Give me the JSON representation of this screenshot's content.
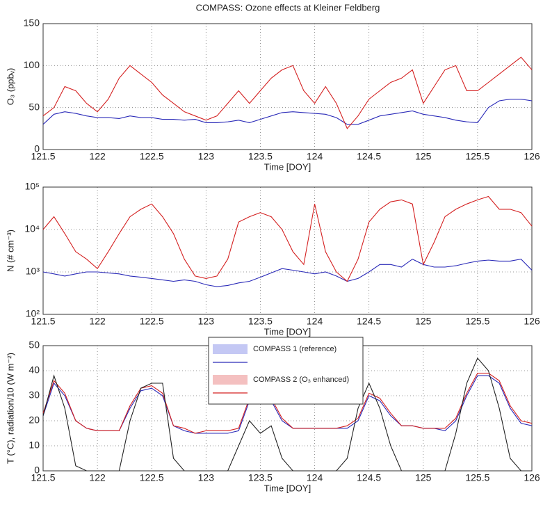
{
  "chart_data": [
    {
      "type": "line",
      "title": "COMPASS: Ozone effects at Kleiner Feldberg",
      "x_label": "Time [DOY]",
      "y_label": "O₃ (ppbᵥ)",
      "x": [
        121.5,
        121.6,
        121.7,
        121.8,
        121.9,
        122.0,
        122.1,
        122.2,
        122.3,
        122.4,
        122.5,
        122.6,
        122.7,
        122.8,
        122.9,
        123.0,
        123.1,
        123.2,
        123.3,
        123.4,
        123.5,
        123.6,
        123.7,
        123.8,
        123.9,
        124.0,
        124.1,
        124.2,
        124.3,
        124.4,
        124.5,
        124.6,
        124.7,
        124.8,
        124.9,
        125.0,
        125.1,
        125.2,
        125.3,
        125.4,
        125.5,
        125.6,
        125.7,
        125.8,
        125.9,
        126.0
      ],
      "xlim": [
        121.5,
        126
      ],
      "xticks": [
        121.5,
        122,
        122.5,
        123,
        123.5,
        124,
        124.5,
        125,
        125.5,
        126
      ],
      "ylim": [
        0,
        150
      ],
      "yticks": [
        0,
        50,
        100,
        150
      ],
      "grid": true,
      "series": [
        {
          "color": "#2a2ab8",
          "values": [
            30,
            42,
            45,
            43,
            40,
            38,
            38,
            37,
            40,
            38,
            38,
            36,
            36,
            35,
            36,
            32,
            32,
            33,
            35,
            32,
            36,
            40,
            44,
            45,
            44,
            43,
            42,
            38,
            30,
            30,
            35,
            40,
            42,
            44,
            46,
            42,
            40,
            38,
            35,
            33,
            32,
            50,
            58,
            60,
            60,
            58
          ]
        },
        {
          "color": "#d42020",
          "values": [
            40,
            50,
            75,
            70,
            55,
            45,
            60,
            85,
            100,
            90,
            80,
            65,
            55,
            45,
            40,
            35,
            40,
            55,
            70,
            55,
            70,
            85,
            95,
            100,
            70,
            55,
            75,
            55,
            25,
            40,
            60,
            70,
            80,
            85,
            95,
            55,
            75,
            95,
            100,
            70,
            70,
            80,
            90,
            100,
            110,
            95
          ]
        }
      ]
    },
    {
      "type": "line",
      "x_label": "Time [DOY]",
      "y_label": "N (# cm⁻³)",
      "log_y": true,
      "x": [
        121.5,
        121.6,
        121.7,
        121.8,
        121.9,
        122.0,
        122.1,
        122.2,
        122.3,
        122.4,
        122.5,
        122.6,
        122.7,
        122.8,
        122.9,
        123.0,
        123.1,
        123.2,
        123.3,
        123.4,
        123.5,
        123.6,
        123.7,
        123.8,
        123.9,
        124.0,
        124.1,
        124.2,
        124.3,
        124.4,
        124.5,
        124.6,
        124.7,
        124.8,
        124.9,
        125.0,
        125.1,
        125.2,
        125.3,
        125.4,
        125.5,
        125.6,
        125.7,
        125.8,
        125.9,
        126.0
      ],
      "xlim": [
        121.5,
        126
      ],
      "xticks": [
        121.5,
        122,
        122.5,
        123,
        123.5,
        124,
        124.5,
        125,
        125.5,
        126
      ],
      "ylim": [
        100,
        100000
      ],
      "yticks": [
        {
          "value": 100,
          "label": "10²"
        },
        {
          "value": 1000,
          "label": "10³"
        },
        {
          "value": 10000,
          "label": "10⁴"
        },
        {
          "value": 100000,
          "label": "10⁵"
        }
      ],
      "grid": true,
      "series": [
        {
          "color": "#2a2ab8",
          "values": [
            1000,
            900,
            800,
            900,
            1000,
            1000,
            950,
            900,
            800,
            750,
            700,
            650,
            600,
            650,
            600,
            500,
            450,
            480,
            550,
            600,
            750,
            950,
            1200,
            1100,
            1000,
            900,
            1000,
            800,
            600,
            700,
            1000,
            1500,
            1500,
            1300,
            2000,
            1500,
            1300,
            1300,
            1400,
            1600,
            1800,
            1900,
            1800,
            1800,
            2000,
            1100
          ]
        },
        {
          "color": "#d42020",
          "values": [
            10000,
            20000,
            8000,
            3000,
            2000,
            1200,
            3000,
            8000,
            20000,
            30000,
            40000,
            20000,
            8000,
            2000,
            800,
            700,
            800,
            2000,
            15000,
            20000,
            25000,
            20000,
            10000,
            3000,
            1500,
            40000,
            3000,
            1000,
            600,
            2000,
            15000,
            30000,
            45000,
            50000,
            40000,
            1500,
            5000,
            20000,
            30000,
            40000,
            50000,
            60000,
            30000,
            30000,
            25000,
            12000
          ]
        }
      ]
    },
    {
      "type": "line",
      "x_label": "Time [DOY]",
      "y_label": "T (°C), radiation/10 (W m⁻²)",
      "x": [
        121.5,
        121.6,
        121.7,
        121.8,
        121.9,
        122.0,
        122.1,
        122.2,
        122.3,
        122.4,
        122.5,
        122.6,
        122.7,
        122.8,
        122.9,
        123.0,
        123.1,
        123.2,
        123.3,
        123.4,
        123.5,
        123.6,
        123.7,
        123.8,
        123.9,
        124.0,
        124.1,
        124.2,
        124.3,
        124.4,
        124.5,
        124.6,
        124.7,
        124.8,
        124.9,
        125.0,
        125.1,
        125.2,
        125.3,
        125.4,
        125.5,
        125.6,
        125.7,
        125.8,
        125.9,
        126.0
      ],
      "xlim": [
        121.5,
        126
      ],
      "xticks": [
        121.5,
        122,
        122.5,
        123,
        123.5,
        124,
        124.5,
        125,
        125.5,
        126
      ],
      "ylim": [
        0,
        50
      ],
      "yticks": [
        0,
        10,
        20,
        30,
        40,
        50
      ],
      "grid": true,
      "legend": "top",
      "series": [
        {
          "name": "COMPASS 1 (reference)",
          "color": "#2a2ab8",
          "band_color": "#c4c8f4",
          "values": [
            22,
            35,
            30,
            20,
            17,
            16,
            16,
            16,
            25,
            32,
            33,
            30,
            18,
            16,
            15,
            15,
            15,
            15,
            16,
            28,
            28,
            28,
            20,
            17,
            17,
            17,
            17,
            17,
            17,
            20,
            30,
            28,
            22,
            18,
            18,
            17,
            17,
            16,
            20,
            30,
            38,
            38,
            35,
            25,
            19,
            18
          ]
        },
        {
          "name": "COMPASS 2 (O₃ enhanced)",
          "color": "#d42020",
          "band_color": "#f4c0c0",
          "values": [
            23,
            36,
            31,
            20,
            17,
            16,
            16,
            16,
            26,
            33,
            34,
            31,
            18,
            17,
            15,
            16,
            16,
            16,
            17,
            29,
            29,
            29,
            21,
            17,
            17,
            17,
            17,
            17,
            18,
            21,
            31,
            29,
            23,
            18,
            18,
            17,
            17,
            17,
            21,
            31,
            39,
            39,
            36,
            26,
            20,
            19
          ]
        },
        {
          "color": "#222222",
          "values": [
            22,
            38,
            25,
            2,
            0,
            0,
            0,
            0,
            20,
            33,
            35,
            35,
            5,
            0,
            0,
            0,
            0,
            0,
            10,
            20,
            15,
            18,
            5,
            0,
            0,
            0,
            0,
            0,
            5,
            25,
            35,
            25,
            10,
            0,
            0,
            0,
            0,
            0,
            15,
            35,
            45,
            40,
            25,
            5,
            0,
            0
          ]
        }
      ]
    }
  ]
}
